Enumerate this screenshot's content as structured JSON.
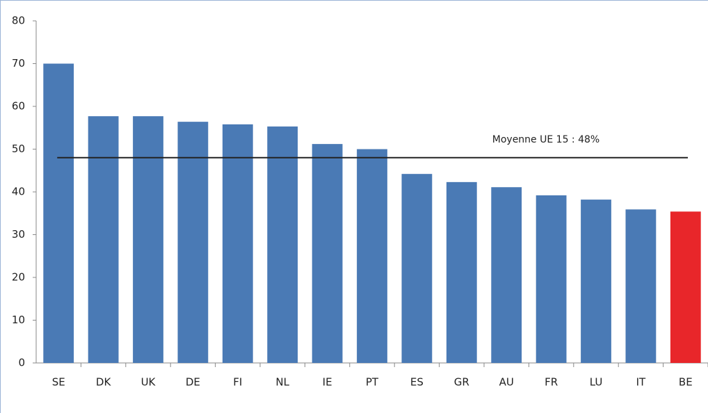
{
  "chart_data": {
    "type": "bar",
    "categories": [
      "SE",
      "DK",
      "UK",
      "DE",
      "FI",
      "NL",
      "IE",
      "PT",
      "ES",
      "GR",
      "AU",
      "FR",
      "LU",
      "IT",
      "BE"
    ],
    "values": [
      70,
      57.7,
      57.7,
      56.4,
      55.8,
      55.3,
      51.2,
      50,
      44.2,
      42.3,
      41.1,
      39.2,
      38.2,
      35.9,
      35.4
    ],
    "colors": [
      "#4a7ab5",
      "#4a7ab5",
      "#4a7ab5",
      "#4a7ab5",
      "#4a7ab5",
      "#4a7ab5",
      "#4a7ab5",
      "#4a7ab5",
      "#4a7ab5",
      "#4a7ab5",
      "#4a7ab5",
      "#4a7ab5",
      "#4a7ab5",
      "#4a7ab5",
      "#e8262a"
    ],
    "ylim": [
      0,
      80
    ],
    "yticks": [
      0,
      10,
      20,
      30,
      40,
      50,
      60,
      70,
      80
    ],
    "grid": false,
    "reference_line": {
      "value": 48,
      "label": "Moyenne UE 15 : 48%",
      "color": "#222222"
    }
  }
}
